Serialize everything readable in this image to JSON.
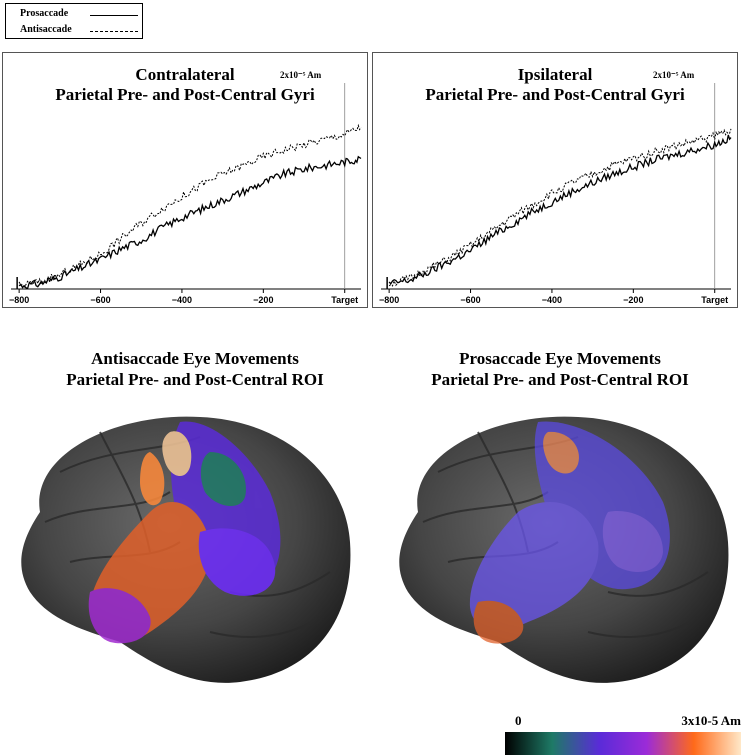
{
  "legend": {
    "prosaccade": "Prosaccade",
    "antisaccade": "Antisaccade"
  },
  "panels": [
    {
      "title_line1": "Contralateral",
      "title_line2": "Parietal Pre- and Post-Central Gyri",
      "scale_label": "2x10⁻⁵ Am"
    },
    {
      "title_line1": "Ipsilateral",
      "title_line2": "Parietal Pre- and Post-Central Gyri",
      "scale_label": "2x10⁻⁵ Am"
    }
  ],
  "brains": [
    {
      "title_line1": "Antisaccade Eye Movements",
      "title_line2": "Parietal Pre- and Post-Central ROI"
    },
    {
      "title_line1": "Prosaccade Eye Movements",
      "title_line2": "Parietal Pre- and Post-Central ROI"
    }
  ],
  "colorbar": {
    "min_label": "0",
    "max_label": "3x10-5 Am",
    "colors": [
      "#000000",
      "#1e7a66",
      "#5a2bd8",
      "#9b2bd8",
      "#ff6a1a",
      "#ffe8c8"
    ]
  },
  "chart_data": [
    {
      "type": "line",
      "title": "Contralateral Parietal Pre- and Post-Central Gyri",
      "xlabel": "",
      "ylabel": "",
      "x_ticks": [
        "−800",
        "−600",
        "−400",
        "−200",
        "Target"
      ],
      "xlim": [
        -820,
        40
      ],
      "ylim": [
        0,
        1
      ],
      "x": [
        -800,
        -750,
        -700,
        -650,
        -600,
        -550,
        -500,
        -450,
        -400,
        -350,
        -300,
        -250,
        -200,
        -150,
        -100,
        -50,
        0,
        40
      ],
      "series": [
        {
          "name": "Prosaccade",
          "style": "solid",
          "values": [
            0.02,
            0.03,
            0.07,
            0.12,
            0.17,
            0.23,
            0.28,
            0.35,
            0.41,
            0.46,
            0.51,
            0.56,
            0.61,
            0.66,
            0.69,
            0.71,
            0.73,
            0.75
          ]
        },
        {
          "name": "Antisaccade",
          "style": "dashed",
          "values": [
            0.02,
            0.04,
            0.08,
            0.14,
            0.2,
            0.29,
            0.38,
            0.46,
            0.53,
            0.6,
            0.66,
            0.71,
            0.76,
            0.8,
            0.83,
            0.86,
            0.89,
            0.93
          ]
        }
      ]
    },
    {
      "type": "line",
      "title": "Ipsilateral Parietal Pre- and Post-Central Gyri",
      "xlabel": "",
      "ylabel": "",
      "x_ticks": [
        "−800",
        "−600",
        "−400",
        "−200",
        "Target"
      ],
      "xlim": [
        -820,
        40
      ],
      "ylim": [
        0,
        1
      ],
      "x": [
        -800,
        -750,
        -700,
        -650,
        -600,
        -550,
        -500,
        -450,
        -400,
        -350,
        -300,
        -250,
        -200,
        -150,
        -100,
        -50,
        0,
        40
      ],
      "series": [
        {
          "name": "Prosaccade",
          "style": "solid",
          "values": [
            0.03,
            0.05,
            0.1,
            0.16,
            0.22,
            0.3,
            0.37,
            0.44,
            0.5,
            0.56,
            0.61,
            0.66,
            0.7,
            0.74,
            0.77,
            0.8,
            0.83,
            0.87
          ]
        },
        {
          "name": "Antisaccade",
          "style": "dashed",
          "values": [
            0.03,
            0.06,
            0.12,
            0.18,
            0.25,
            0.33,
            0.41,
            0.48,
            0.55,
            0.61,
            0.66,
            0.71,
            0.75,
            0.79,
            0.82,
            0.85,
            0.88,
            0.92
          ]
        }
      ]
    }
  ]
}
